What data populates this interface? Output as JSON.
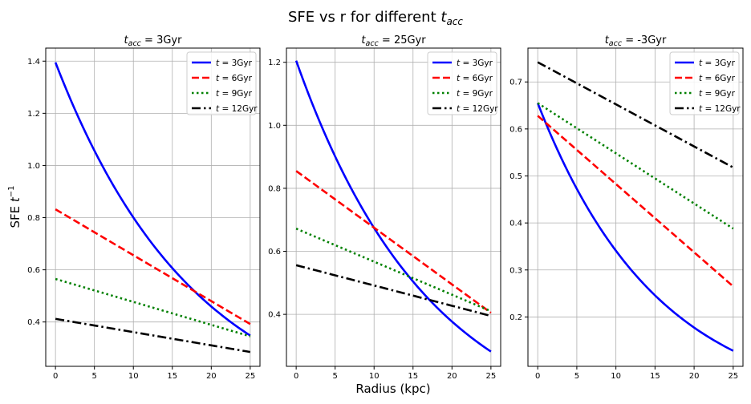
{
  "figure": {
    "suptitle_main": "SFE vs r for different ",
    "suptitle_sym": "t",
    "suptitle_sub": "acc",
    "xlabel": "Radius (kpc)",
    "ylabel_main": "SFE ",
    "ylabel_sym": "t",
    "ylabel_exp": "−1"
  },
  "chart_data": [
    {
      "type": "line",
      "title_sym": "t",
      "title_sub": "acc",
      "title_val": " = 3Gyr",
      "x": [
        0,
        25
      ],
      "xticks": [
        0,
        5,
        10,
        15,
        20,
        25
      ],
      "xlim": [
        -1.25,
        26.25
      ],
      "yticks": [
        0.4,
        0.6,
        0.8,
        1.0,
        1.2,
        1.4
      ],
      "ytick_labels": [
        "0.4",
        "0.6",
        "0.8",
        "1.0",
        "1.2",
        "1.4"
      ],
      "ylim": [
        0.23,
        1.45
      ],
      "grid": true,
      "legend_position": "upper right",
      "series": [
        {
          "name": "t = 3Gyr",
          "label_val": " = 3Gyr",
          "color": "#0000ff",
          "dash": "solid",
          "y0": 1.395,
          "y1": 0.348
        },
        {
          "name": "t = 6Gyr",
          "label_val": " = 6Gyr",
          "color": "#ff0000",
          "dash": "dashed",
          "y0": 0.832,
          "y1": 0.392
        },
        {
          "name": "t = 9Gyr",
          "label_val": " = 9Gyr",
          "color": "#008000",
          "dash": "dotted",
          "y0": 0.565,
          "y1": 0.345
        },
        {
          "name": "t = 12Gyr",
          "label_val": " = 12Gyr",
          "color": "#000000",
          "dash": "dashdot",
          "y0": 0.412,
          "y1": 0.285
        }
      ]
    },
    {
      "type": "line",
      "title_sym": "t",
      "title_sub": "acc",
      "title_val": " = 25Gyr",
      "x": [
        0,
        25
      ],
      "xticks": [
        0,
        5,
        10,
        15,
        20,
        25
      ],
      "xlim": [
        -1.25,
        26.25
      ],
      "yticks": [
        0.4,
        0.6,
        0.8,
        1.0,
        1.2
      ],
      "ytick_labels": [
        "0.4",
        "0.6",
        "0.8",
        "1.0",
        "1.2"
      ],
      "ylim": [
        0.235,
        1.245
      ],
      "grid": true,
      "legend_position": "upper right",
      "series": [
        {
          "name": "t = 3Gyr",
          "label_val": " = 3Gyr",
          "color": "#0000ff",
          "dash": "solid",
          "y0": 1.205,
          "y1": 0.282
        },
        {
          "name": "t = 6Gyr",
          "label_val": " = 6Gyr",
          "color": "#ff0000",
          "dash": "dashed",
          "y0": 0.855,
          "y1": 0.405
        },
        {
          "name": "t = 9Gyr",
          "label_val": " = 9Gyr",
          "color": "#008000",
          "dash": "dotted",
          "y0": 0.672,
          "y1": 0.41
        },
        {
          "name": "t = 12Gyr",
          "label_val": " = 12Gyr",
          "color": "#000000",
          "dash": "dashdot",
          "y0": 0.556,
          "y1": 0.395
        }
      ]
    },
    {
      "type": "line",
      "title_sym": "t",
      "title_sub": "acc",
      "title_val": " = -3Gyr",
      "x": [
        0,
        25
      ],
      "xticks": [
        0,
        5,
        10,
        15,
        20,
        25
      ],
      "xlim": [
        -1.25,
        26.25
      ],
      "yticks": [
        0.2,
        0.3,
        0.4,
        0.5,
        0.6,
        0.7
      ],
      "ytick_labels": [
        "0.2",
        "0.3",
        "0.4",
        "0.5",
        "0.6",
        "0.7"
      ],
      "ylim": [
        0.095,
        0.772
      ],
      "grid": true,
      "legend_position": "upper right",
      "series": [
        {
          "name": "t = 3Gyr",
          "label_val": " = 3Gyr",
          "color": "#0000ff",
          "dash": "solid",
          "y0": 0.655,
          "y1": 0.128
        },
        {
          "name": "t = 6Gyr",
          "label_val": " = 6Gyr",
          "color": "#ff0000",
          "dash": "dashed",
          "y0": 0.628,
          "y1": 0.265
        },
        {
          "name": "t = 9Gyr",
          "label_val": " = 9Gyr",
          "color": "#008000",
          "dash": "dotted",
          "y0": 0.655,
          "y1": 0.388
        },
        {
          "name": "t = 12Gyr",
          "label_val": " = 12Gyr",
          "color": "#000000",
          "dash": "dashdot",
          "y0": 0.742,
          "y1": 0.518
        }
      ]
    }
  ]
}
